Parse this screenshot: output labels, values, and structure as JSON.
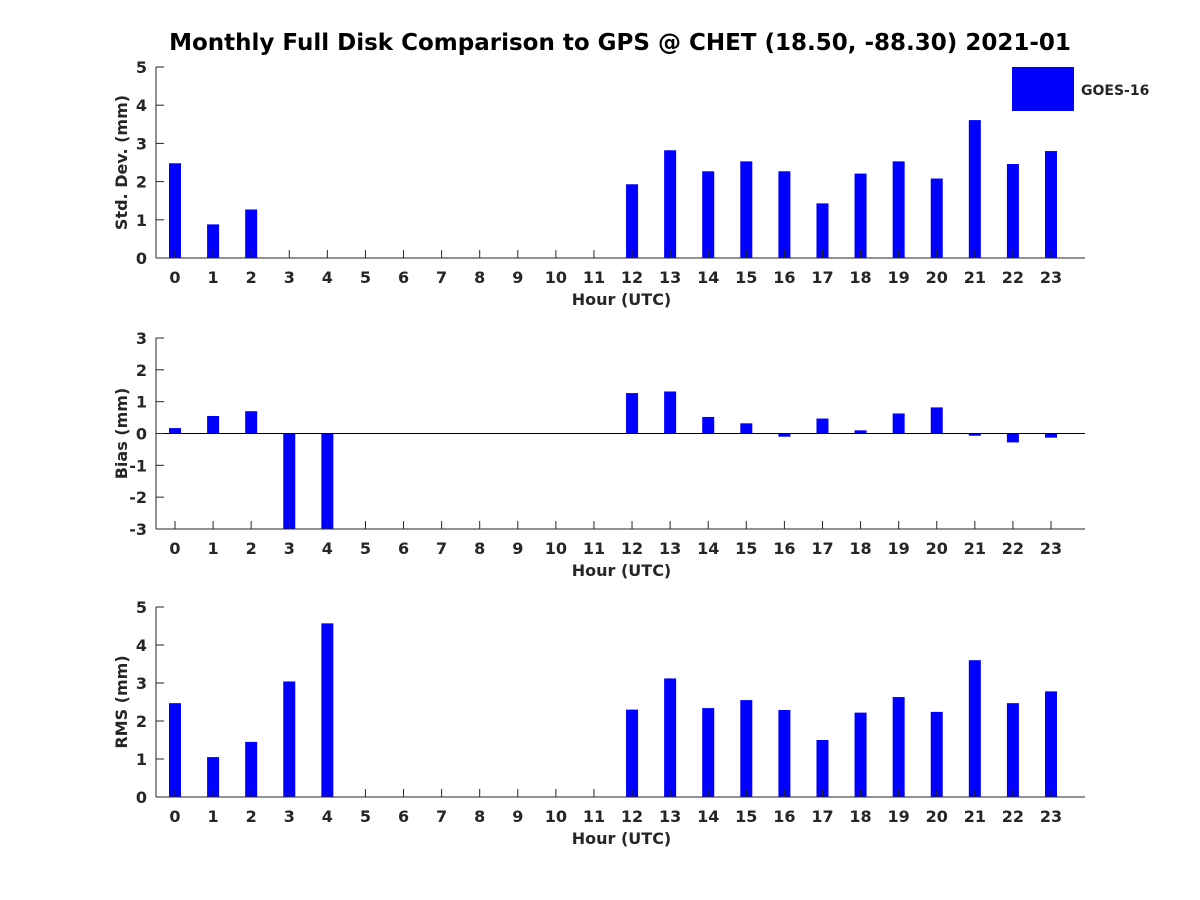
{
  "title": "Monthly Full Disk Comparison to GPS @ CHET (18.50, -88.30) 2021-01",
  "legend": {
    "label": "GOES-16",
    "color": "#0000ff",
    "placement": "top-right"
  },
  "colors": {
    "bar": "#0000ff",
    "axis": "#262626"
  },
  "chart_data": [
    {
      "type": "bar",
      "ylabel": "Std. Dev. (mm)",
      "xlabel": "Hour (UTC)",
      "ylim": [
        0,
        5
      ],
      "yticks": [
        0,
        1,
        2,
        3,
        4,
        5
      ],
      "categories": [
        "0",
        "1",
        "2",
        "3",
        "4",
        "5",
        "6",
        "7",
        "8",
        "9",
        "10",
        "11",
        "12",
        "13",
        "14",
        "15",
        "16",
        "17",
        "18",
        "19",
        "20",
        "21",
        "22",
        "23"
      ],
      "series": [
        {
          "name": "GOES-16",
          "values": [
            2.48,
            0.88,
            1.27,
            null,
            null,
            null,
            null,
            null,
            null,
            null,
            null,
            null,
            1.93,
            2.82,
            2.27,
            2.53,
            2.27,
            1.43,
            2.21,
            2.53,
            2.08,
            3.61,
            2.46,
            2.8
          ]
        }
      ]
    },
    {
      "type": "bar",
      "ylabel": "Bias (mm)",
      "xlabel": "Hour (UTC)",
      "ylim": [
        -3,
        3
      ],
      "yticks": [
        -3,
        -2,
        -1,
        0,
        1,
        2,
        3
      ],
      "categories": [
        "0",
        "1",
        "2",
        "3",
        "4",
        "5",
        "6",
        "7",
        "8",
        "9",
        "10",
        "11",
        "12",
        "13",
        "14",
        "15",
        "16",
        "17",
        "18",
        "19",
        "20",
        "21",
        "22",
        "23"
      ],
      "series": [
        {
          "name": "GOES-16",
          "values": [
            0.17,
            0.55,
            0.7,
            -3.0,
            -3.0,
            null,
            null,
            null,
            null,
            null,
            null,
            null,
            1.27,
            1.32,
            0.52,
            0.32,
            -0.1,
            0.47,
            0.1,
            0.63,
            0.82,
            -0.07,
            -0.28,
            -0.13
          ]
        }
      ]
    },
    {
      "type": "bar",
      "ylabel": "RMS (mm)",
      "xlabel": "Hour (UTC)",
      "ylim": [
        0,
        5
      ],
      "yticks": [
        0,
        1,
        2,
        3,
        4,
        5
      ],
      "categories": [
        "0",
        "1",
        "2",
        "3",
        "4",
        "5",
        "6",
        "7",
        "8",
        "9",
        "10",
        "11",
        "12",
        "13",
        "14",
        "15",
        "16",
        "17",
        "18",
        "19",
        "20",
        "21",
        "22",
        "23"
      ],
      "series": [
        {
          "name": "GOES-16",
          "values": [
            2.47,
            1.05,
            1.45,
            3.04,
            4.57,
            null,
            null,
            null,
            null,
            null,
            null,
            null,
            2.3,
            3.12,
            2.34,
            2.55,
            2.29,
            1.5,
            2.22,
            2.63,
            2.24,
            3.6,
            2.47,
            2.78
          ]
        }
      ]
    }
  ]
}
